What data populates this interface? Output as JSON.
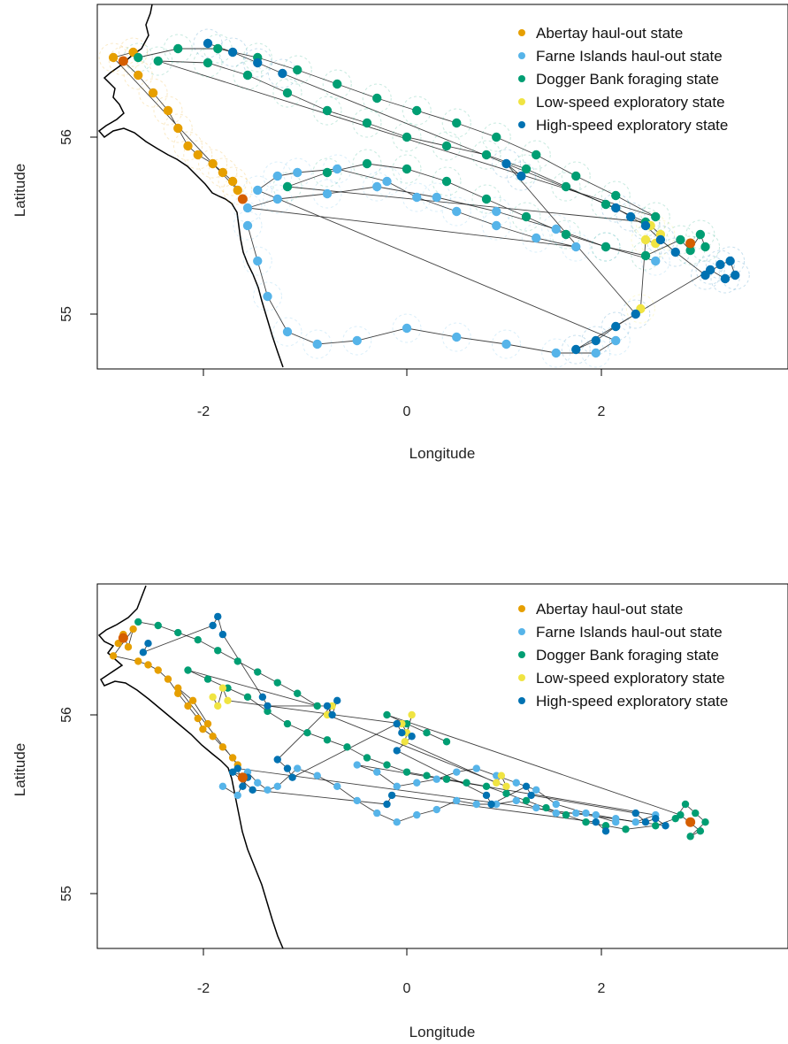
{
  "legend_entries": [
    {
      "label": "Abertay haul-out state",
      "color": "#E69F00"
    },
    {
      "label": "Farne Islands haul-out state",
      "color": "#56B4E9"
    },
    {
      "label": "Dogger Bank foraging state",
      "color": "#009E73"
    },
    {
      "label": "Low-speed exploratory state",
      "color": "#F0E442"
    },
    {
      "label": "High-speed exploratory state",
      "color": "#0072B2"
    }
  ],
  "colors": {
    "abertay": "#E69F00",
    "farne": "#56B4E9",
    "dogger": "#009E73",
    "lowspeed": "#F0E442",
    "highspeed": "#0072B2",
    "haulout_site": "#D55E00",
    "coastline": "#000000",
    "track_line": "#000000"
  },
  "chart_data": [
    {
      "type": "scatter",
      "panel": "top",
      "xlabel": "Longitude",
      "ylabel": "Latitude",
      "xlim": [
        -3.0,
        3.8
      ],
      "ylim": [
        54.7,
        56.75
      ],
      "x_ticks": [
        "-2",
        "0",
        "2"
      ],
      "y_ticks": [
        "55",
        "56"
      ],
      "grid": false,
      "legend_position": "top-right",
      "haulout_sites": [
        {
          "x": -2.85,
          "y": 56.43
        },
        {
          "x": -1.65,
          "y": 55.65
        },
        {
          "x": 2.85,
          "y": 55.4
        }
      ],
      "series": [
        {
          "state": "abertay",
          "name": "Abertay haul-out state",
          "x": [
            -2.85,
            -2.7,
            -2.55,
            -2.4,
            -2.3,
            -2.2,
            -2.1,
            -1.95,
            -1.85,
            -1.75,
            -1.7,
            -2.95,
            -2.75
          ],
          "y": [
            56.43,
            56.35,
            56.25,
            56.15,
            56.05,
            55.95,
            55.9,
            55.85,
            55.8,
            55.75,
            55.7,
            56.45,
            56.48
          ]
        },
        {
          "state": "farne",
          "name": "Farne Islands haul-out state",
          "x": [
            -1.6,
            -1.5,
            -1.4,
            -1.2,
            -0.9,
            -0.5,
            0.0,
            0.5,
            1.0,
            1.5,
            1.9,
            2.1,
            -1.5,
            -1.3,
            -1.1,
            -0.7,
            -0.2,
            0.1,
            0.5,
            0.9,
            1.3,
            1.7,
            -1.6,
            -1.3,
            -0.8,
            -0.3,
            0.3,
            0.9,
            1.5,
            2.0,
            2.5
          ],
          "y": [
            55.5,
            55.3,
            55.1,
            54.9,
            54.83,
            54.85,
            54.92,
            54.87,
            54.83,
            54.78,
            54.78,
            54.85,
            55.7,
            55.78,
            55.8,
            55.82,
            55.75,
            55.66,
            55.58,
            55.5,
            55.43,
            55.38,
            55.6,
            55.65,
            55.68,
            55.72,
            55.66,
            55.58,
            55.48,
            55.38,
            55.3
          ]
        },
        {
          "state": "dogger",
          "name": "Dogger Bank foraging state",
          "x": [
            -2.7,
            -2.3,
            -1.9,
            -1.5,
            -1.1,
            -0.7,
            -0.3,
            0.1,
            0.5,
            0.9,
            1.3,
            1.7,
            2.1,
            2.5,
            -2.5,
            -2.0,
            -1.6,
            -1.2,
            -0.8,
            -0.4,
            0.0,
            0.4,
            0.8,
            1.2,
            1.6,
            2.0,
            2.4,
            -1.2,
            -0.8,
            -0.4,
            0.0,
            0.4,
            0.8,
            1.2,
            1.6,
            2.0,
            2.4,
            2.75,
            2.85,
            2.95,
            3.0
          ],
          "y": [
            56.45,
            56.5,
            56.5,
            56.45,
            56.38,
            56.3,
            56.22,
            56.15,
            56.08,
            56.0,
            55.9,
            55.78,
            55.67,
            55.55,
            56.43,
            56.42,
            56.35,
            56.25,
            56.15,
            56.08,
            56.0,
            55.95,
            55.9,
            55.82,
            55.72,
            55.62,
            55.52,
            55.72,
            55.8,
            55.85,
            55.82,
            55.75,
            55.65,
            55.55,
            55.45,
            55.38,
            55.33,
            55.42,
            55.36,
            55.45,
            55.38
          ]
        },
        {
          "state": "lowspeed",
          "name": "Low-speed exploratory state",
          "x": [
            2.45,
            2.55,
            2.5,
            2.4,
            2.35
          ],
          "y": [
            55.5,
            55.45,
            55.4,
            55.42,
            55.03
          ]
        },
        {
          "state": "highspeed",
          "name": "High-speed exploratory state",
          "x": [
            -2.0,
            -1.75,
            -1.5,
            -1.25,
            2.1,
            2.25,
            2.4,
            2.55,
            2.7,
            3.0,
            3.15,
            3.25,
            3.3,
            3.2,
            3.05,
            1.7,
            1.9,
            2.1,
            2.3,
            1.0,
            1.15
          ],
          "y": [
            56.53,
            56.48,
            56.42,
            56.36,
            55.6,
            55.55,
            55.5,
            55.42,
            55.35,
            55.22,
            55.28,
            55.3,
            55.22,
            55.2,
            55.25,
            54.8,
            54.85,
            54.93,
            55.0,
            55.85,
            55.78
          ]
        }
      ]
    },
    {
      "type": "scatter",
      "panel": "bottom",
      "xlabel": "Longitude",
      "ylabel": "Latitude",
      "xlim": [
        -3.0,
        3.8
      ],
      "ylim": [
        54.7,
        56.75
      ],
      "x_ticks": [
        "-2",
        "0",
        "2"
      ],
      "y_ticks": [
        "55",
        "56"
      ],
      "grid": false,
      "legend_position": "top-right",
      "haulout_sites": [
        {
          "x": -2.85,
          "y": 56.43
        },
        {
          "x": -1.65,
          "y": 55.65
        },
        {
          "x": 2.85,
          "y": 55.4
        }
      ],
      "series": [
        {
          "state": "abertay",
          "name": "Abertay haul-out state",
          "x": [
            -2.9,
            -2.85,
            -2.8,
            -2.75,
            -2.95,
            -2.7,
            -2.6,
            -2.5,
            -2.4,
            -2.3,
            -2.2,
            -2.1,
            -2.05,
            -1.95,
            -1.85,
            -1.75,
            -1.7,
            -2.3,
            -2.15,
            -2.0
          ],
          "y": [
            56.4,
            56.45,
            56.38,
            56.48,
            56.33,
            56.3,
            56.28,
            56.25,
            56.2,
            56.12,
            56.05,
            55.98,
            55.92,
            55.88,
            55.82,
            55.76,
            55.72,
            56.15,
            56.08,
            55.95
          ]
        },
        {
          "state": "farne",
          "name": "Farne Islands haul-out state",
          "x": [
            -1.85,
            -1.7,
            -1.6,
            -1.5,
            -1.4,
            -1.3,
            -1.1,
            -0.9,
            -0.7,
            -0.5,
            -0.3,
            -0.1,
            0.1,
            0.3,
            0.5,
            0.7,
            0.9,
            1.1,
            1.3,
            1.5,
            1.7,
            1.9,
            2.1,
            2.3,
            2.5,
            -0.5,
            -0.3,
            -0.1,
            0.1,
            0.3,
            0.5,
            0.7,
            0.9,
            1.1,
            1.3,
            1.5,
            1.8,
            2.1
          ],
          "y": [
            55.6,
            55.55,
            55.68,
            55.62,
            55.58,
            55.6,
            55.7,
            55.66,
            55.6,
            55.52,
            55.45,
            55.4,
            55.44,
            55.47,
            55.52,
            55.5,
            55.5,
            55.52,
            55.48,
            55.45,
            55.45,
            55.44,
            55.42,
            55.4,
            55.44,
            55.72,
            55.68,
            55.6,
            55.62,
            55.64,
            55.68,
            55.7,
            55.66,
            55.62,
            55.58,
            55.5,
            55.45,
            55.4
          ]
        },
        {
          "state": "dogger",
          "name": "Dogger Bank foraging state",
          "x": [
            -2.7,
            -2.5,
            -2.3,
            -2.1,
            -1.9,
            -1.7,
            -1.5,
            -1.3,
            -1.1,
            -0.9,
            -2.2,
            -2.0,
            -1.8,
            -1.6,
            -1.4,
            -1.2,
            -1.0,
            -0.8,
            -0.6,
            -0.4,
            -0.2,
            0.0,
            0.2,
            0.4,
            0.6,
            0.8,
            1.0,
            1.2,
            1.4,
            1.6,
            1.8,
            2.0,
            2.2,
            2.5,
            2.7,
            2.8,
            2.9,
            3.0,
            2.85,
            2.95,
            2.75,
            -0.2,
            0.0,
            0.2,
            0.4
          ],
          "y": [
            56.52,
            56.5,
            56.46,
            56.42,
            56.36,
            56.3,
            56.24,
            56.18,
            56.12,
            56.05,
            56.25,
            56.2,
            56.15,
            56.1,
            56.02,
            55.95,
            55.9,
            55.86,
            55.82,
            55.76,
            55.72,
            55.68,
            55.66,
            55.64,
            55.62,
            55.6,
            55.56,
            55.52,
            55.48,
            55.44,
            55.4,
            55.38,
            55.36,
            55.38,
            55.42,
            55.5,
            55.45,
            55.4,
            55.32,
            55.35,
            55.44,
            56.0,
            55.95,
            55.9,
            55.85
          ]
        },
        {
          "state": "lowspeed",
          "name": "Low-speed exploratory state",
          "x": [
            -1.95,
            -1.9,
            -1.85,
            -1.8,
            -0.05,
            0.0,
            0.05,
            -0.02,
            0.9,
            0.95,
            1.0,
            -0.8,
            -0.75
          ],
          "y": [
            56.1,
            56.05,
            56.15,
            56.08,
            55.95,
            55.9,
            56.0,
            55.85,
            55.62,
            55.66,
            55.6,
            56.0,
            56.05
          ]
        },
        {
          "state": "highspeed",
          "name": "High-speed exploratory state",
          "x": [
            -2.6,
            -2.65,
            -1.95,
            -1.9,
            -1.85,
            -1.45,
            -1.4,
            -0.8,
            -0.75,
            -0.7,
            -1.3,
            -1.2,
            -1.15,
            -0.1,
            -0.05,
            0.05,
            -0.1,
            0.8,
            0.85,
            1.2,
            1.25,
            2.3,
            2.4,
            2.5,
            2.6,
            -1.7,
            -1.65,
            -1.6,
            -1.75,
            -1.55,
            -0.2,
            -0.15,
            1.9,
            2.0
          ],
          "y": [
            56.4,
            56.35,
            56.5,
            56.55,
            56.45,
            56.1,
            56.05,
            56.05,
            56.0,
            56.08,
            55.75,
            55.7,
            55.65,
            55.95,
            55.9,
            55.88,
            55.8,
            55.55,
            55.5,
            55.6,
            55.55,
            55.45,
            55.4,
            55.42,
            55.38,
            55.7,
            55.6,
            55.65,
            55.68,
            55.58,
            55.5,
            55.55,
            55.4,
            55.35
          ]
        }
      ]
    }
  ]
}
